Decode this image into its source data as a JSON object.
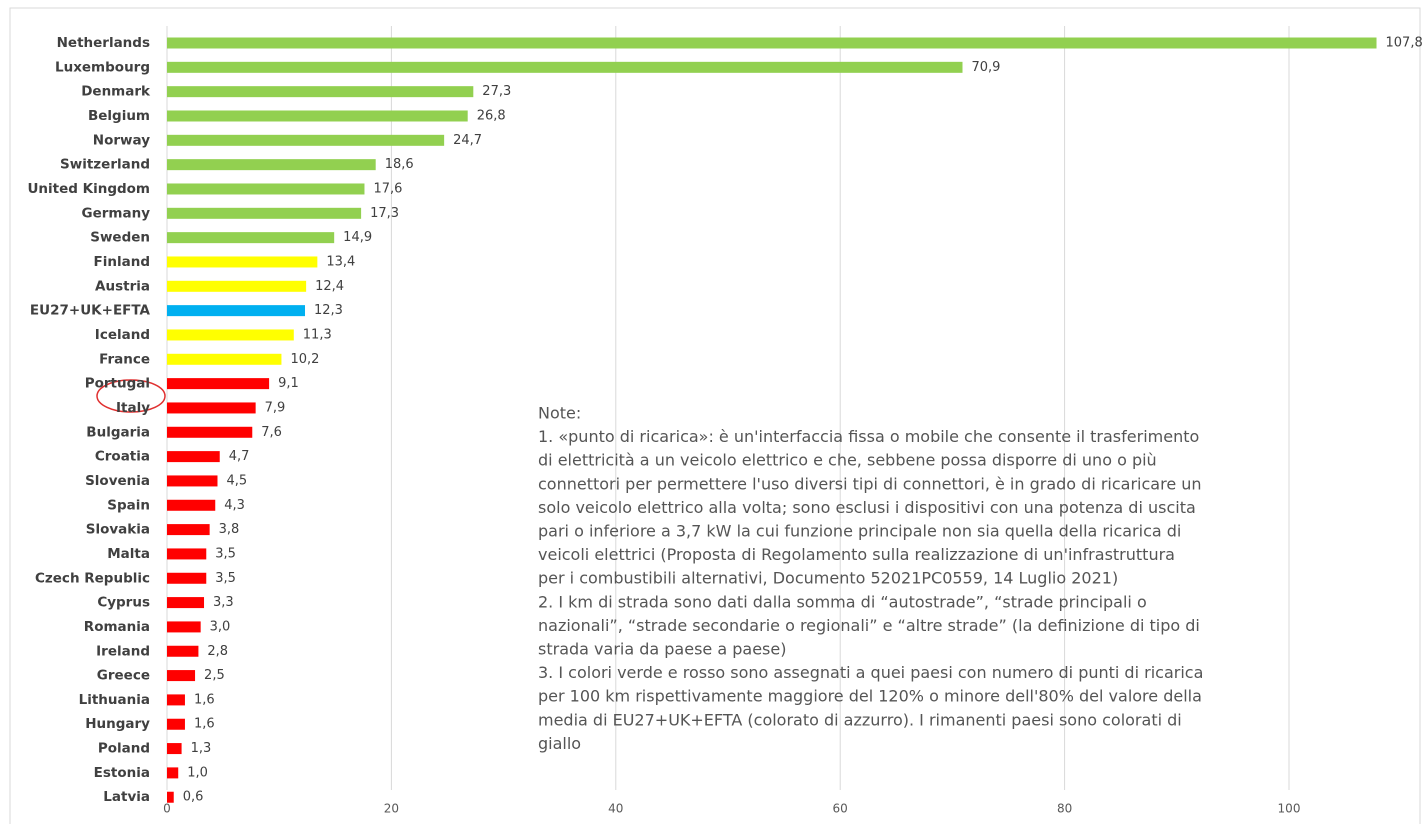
{
  "chart_data": {
    "type": "hbar",
    "categories": [
      "Netherlands",
      "Luxembourg",
      "Denmark",
      "Belgium",
      "Norway",
      "Switzerland",
      "United Kingdom",
      "Germany",
      "Sweden",
      "Finland",
      "Austria",
      "EU27+UK+EFTA",
      "Iceland",
      "France",
      "Portugal",
      "Italy",
      "Bulgaria",
      "Croatia",
      "Slovenia",
      "Spain",
      "Slovakia",
      "Malta",
      "Czech Republic",
      "Cyprus",
      "Romania",
      "Ireland",
      "Greece",
      "Lithuania",
      "Hungary",
      "Poland",
      "Estonia",
      "Latvia"
    ],
    "values": [
      107.8,
      70.9,
      27.3,
      26.8,
      24.7,
      18.6,
      17.6,
      17.3,
      14.9,
      13.4,
      12.4,
      12.3,
      11.3,
      10.2,
      9.1,
      7.9,
      7.6,
      4.7,
      4.5,
      4.3,
      3.8,
      3.5,
      3.5,
      3.3,
      3.0,
      2.8,
      2.5,
      1.6,
      1.6,
      1.3,
      1.0,
      0.6
    ],
    "value_labels": [
      "107,8",
      "70,9",
      "27,3",
      "26,8",
      "24,7",
      "18,6",
      "17,6",
      "17,3",
      "14,9",
      "13,4",
      "12,4",
      "12,3",
      "11,3",
      "10,2",
      "9,1",
      "7,9",
      "7,6",
      "4,7",
      "4,5",
      "4,3",
      "3,8",
      "3,5",
      "3,5",
      "3,3",
      "3,0",
      "2,8",
      "2,5",
      "1,6",
      "1,6",
      "1,3",
      "1,0",
      "0,6"
    ],
    "colors": [
      "#92d050",
      "#92d050",
      "#92d050",
      "#92d050",
      "#92d050",
      "#92d050",
      "#92d050",
      "#92d050",
      "#92d050",
      "#ffff00",
      "#ffff00",
      "#00b0f0",
      "#ffff00",
      "#ffff00",
      "#ff0000",
      "#ff0000",
      "#ff0000",
      "#ff0000",
      "#ff0000",
      "#ff0000",
      "#ff0000",
      "#ff0000",
      "#ff0000",
      "#ff0000",
      "#ff0000",
      "#ff0000",
      "#ff0000",
      "#ff0000",
      "#ff0000",
      "#ff0000",
      "#ff0000",
      "#ff0000"
    ],
    "xlim": [
      0,
      110
    ],
    "xticks": [
      0,
      20,
      40,
      60,
      80,
      100
    ],
    "grid": true,
    "note": [
      "Note:",
      "1. «punto di ricarica»: è un'interfaccia fissa o mobile che consente il trasferimento",
      "di elettricità a un veicolo elettrico e che, sebbene possa disporre di uno o più",
      "connettori per permettere l'uso diversi tipi di connettori, è in grado di ricaricare un",
      "solo veicolo elettrico alla volta; sono esclusi i dispositivi con una potenza di uscita",
      "pari o inferiore a 3,7 kW la cui funzione principale non sia quella della ricarica di",
      "veicoli elettrici (Proposta di Regolamento sulla realizzazione di un'infrastruttura",
      "per i combustibili alternativi, Documento 52021PC0559, 14 Luglio 2021)",
      "2. I km di strada sono dati dalla somma di “autostrade”, “strade principali o",
      "nazionali”, “strade secondarie o regionali” e “altre strade” (la definizione di tipo di",
      "strada varia da paese a paese)",
      "3. I colori verde e rosso sono assegnati a quei paesi con numero di punti di ricarica",
      "per 100 km rispettivamente maggiore del 120% o minore dell'80% del valore della",
      "media di EU27+UK+EFTA (colorato di azzurro). I rimanenti paesi sono colorati di",
      "giallo"
    ]
  }
}
